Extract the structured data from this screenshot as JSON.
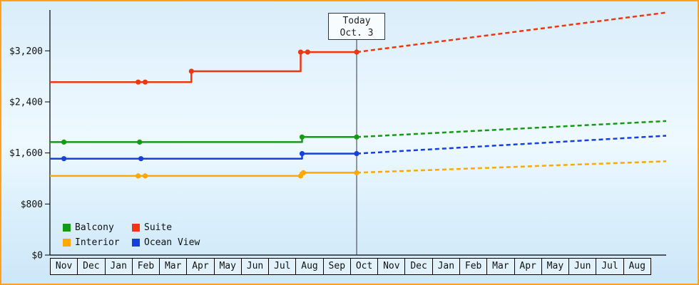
{
  "frame": {
    "border_color": "#ffa01e",
    "background_top": "#d9edfa",
    "background_bottom": "#cde7f8"
  },
  "legend": [
    {
      "label": "Balcony",
      "color": "#149a14"
    },
    {
      "label": "Suite",
      "color": "#ee3611"
    },
    {
      "label": "Interior",
      "color": "#ffa800"
    },
    {
      "label": "Ocean View",
      "color": "#1540dd"
    }
  ],
  "chart_data": {
    "type": "line",
    "grid": false,
    "legend_position": "inside-bottom-left",
    "x_categories": [
      "Nov",
      "Dec",
      "Jan",
      "Feb",
      "Mar",
      "Apr",
      "May",
      "Jun",
      "Jul",
      "Aug",
      "Sep",
      "Oct",
      "Nov",
      "Dec",
      "Jan",
      "Feb",
      "Mar",
      "Apr",
      "May",
      "Jun",
      "Jul",
      "Aug"
    ],
    "y_ticks": [
      {
        "label": "$0",
        "value": 0
      },
      {
        "label": "$800",
        "value": 800
      },
      {
        "label": "$1,600",
        "value": 1600
      },
      {
        "label": "$2,400",
        "value": 2400
      },
      {
        "label": "$3,200",
        "value": 3200
      }
    ],
    "ylim": [
      0,
      3840
    ],
    "today": {
      "label": "Today",
      "date": "Oct. 3",
      "month_index": 10.95
    },
    "series": [
      {
        "name": "Interior",
        "color": "#ffa800",
        "history": [
          [
            0,
            1240
          ],
          [
            8.95,
            1240
          ],
          [
            8.95,
            1290
          ],
          [
            10.95,
            1290
          ]
        ],
        "markers": [
          [
            3.15,
            1240
          ],
          [
            3.4,
            1240
          ],
          [
            8.95,
            1240
          ],
          [
            9.05,
            1290
          ],
          [
            10.95,
            1290
          ]
        ],
        "forecast": [
          [
            10.95,
            1290
          ],
          [
            22,
            1470
          ]
        ]
      },
      {
        "name": "Ocean View",
        "color": "#1540dd",
        "history": [
          [
            0,
            1510
          ],
          [
            9.0,
            1510
          ],
          [
            9.0,
            1590
          ],
          [
            10.95,
            1590
          ]
        ],
        "markers": [
          [
            0.5,
            1510
          ],
          [
            3.25,
            1510
          ],
          [
            9.0,
            1590
          ],
          [
            10.95,
            1590
          ]
        ],
        "forecast": [
          [
            10.95,
            1590
          ],
          [
            22,
            1870
          ]
        ]
      },
      {
        "name": "Balcony",
        "color": "#149a14",
        "history": [
          [
            0,
            1770
          ],
          [
            9.0,
            1770
          ],
          [
            9.0,
            1850
          ],
          [
            10.95,
            1850
          ]
        ],
        "markers": [
          [
            0.5,
            1770
          ],
          [
            3.2,
            1770
          ],
          [
            9.0,
            1850
          ],
          [
            10.95,
            1850
          ]
        ],
        "forecast": [
          [
            10.95,
            1850
          ],
          [
            22,
            2100
          ]
        ]
      },
      {
        "name": "Suite",
        "color": "#ee3611",
        "history": [
          [
            0,
            2710
          ],
          [
            5.05,
            2710
          ],
          [
            5.05,
            2880
          ],
          [
            8.95,
            2880
          ],
          [
            8.95,
            3180
          ],
          [
            10.95,
            3180
          ]
        ],
        "markers": [
          [
            3.15,
            2710
          ],
          [
            3.4,
            2710
          ],
          [
            5.05,
            2880
          ],
          [
            8.95,
            3180
          ],
          [
            9.2,
            3180
          ],
          [
            10.95,
            3180
          ]
        ],
        "forecast": [
          [
            10.95,
            3180
          ],
          [
            22,
            3800
          ]
        ]
      }
    ]
  }
}
